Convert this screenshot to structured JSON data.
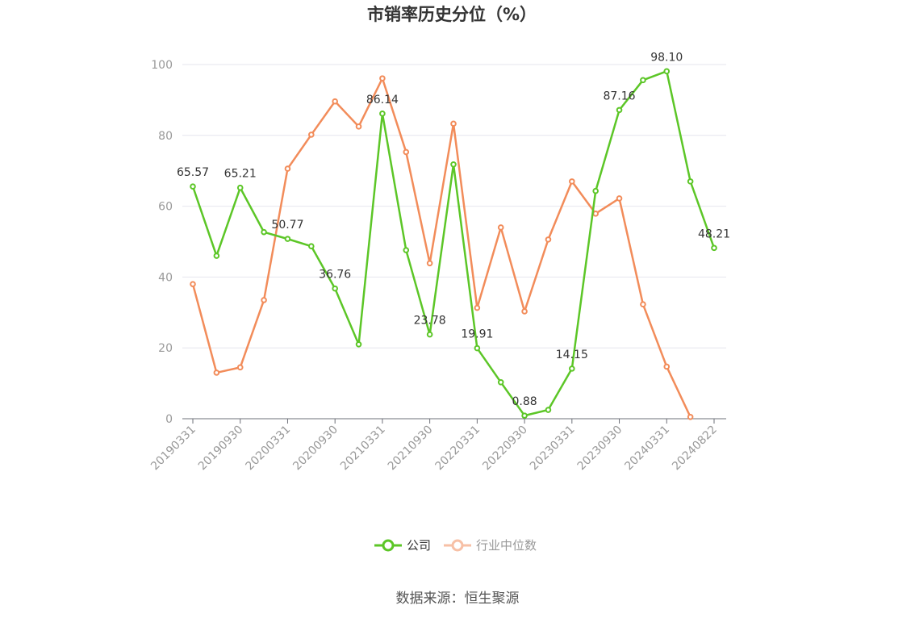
{
  "chart_data": {
    "type": "line",
    "title": "市销率历史分位（%）",
    "ylim": [
      0,
      100
    ],
    "yticks": [
      0,
      20,
      40,
      60,
      80,
      100
    ],
    "x_tick_labels": [
      "20190331",
      "20190930",
      "20200331",
      "20200930",
      "20210331",
      "20210930",
      "20220331",
      "20220930",
      "20230331",
      "20230930",
      "20240331",
      "20240822"
    ],
    "x_count": 23,
    "grid": true,
    "legend_position": "bottom",
    "series": [
      {
        "name": "公司",
        "color": "#5cc627",
        "values": [
          65.57,
          46.0,
          65.21,
          52.7,
          50.77,
          48.7,
          36.76,
          21.0,
          86.14,
          47.6,
          23.78,
          71.8,
          19.91,
          10.3,
          0.88,
          2.5,
          14.15,
          64.3,
          87.16,
          95.6,
          98.1,
          67.0,
          48.21
        ],
        "labels": {
          "0": "65.57",
          "2": "65.21",
          "4": "50.77",
          "6": "36.76",
          "8": "86.14",
          "10": "23.78",
          "12": "19.91",
          "14": "0.88",
          "16": "14.15",
          "18": "87.16",
          "20": "98.10",
          "22": "48.21"
        }
      },
      {
        "name": "行业中位数",
        "color": "#f28c5a",
        "values": [
          38.0,
          13.0,
          14.5,
          33.5,
          70.6,
          80.2,
          89.6,
          82.5,
          96.1,
          75.3,
          43.9,
          83.3,
          31.3,
          54.0,
          30.3,
          50.6,
          67.0,
          57.9,
          62.2,
          32.3,
          14.7,
          0.5,
          null
        ]
      }
    ]
  },
  "legend": {
    "company": "公司",
    "industry": "行业中位数",
    "industry_text_color": "#999999",
    "company_text_color": "#333333"
  },
  "source": "数据来源：恒生聚源"
}
